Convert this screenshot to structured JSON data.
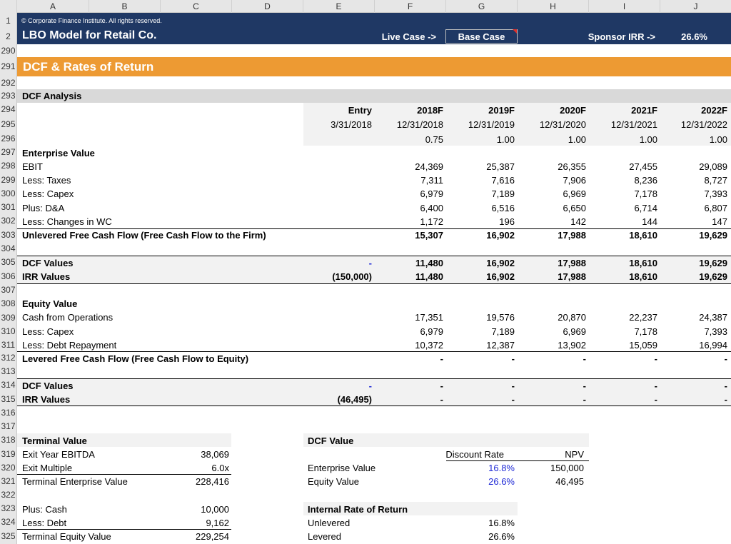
{
  "column_headers": [
    "A",
    "B",
    "C",
    "D",
    "E",
    "F",
    "G",
    "H",
    "I",
    "J"
  ],
  "row_numbers": [
    "1",
    "2",
    "290",
    "291",
    "292",
    "293",
    "294",
    "295",
    "296",
    "297",
    "298",
    "299",
    "300",
    "301",
    "302",
    "303",
    "304",
    "305",
    "306",
    "307",
    "308",
    "309",
    "310",
    "311",
    "312",
    "313",
    "314",
    "315",
    "316",
    "317",
    "318",
    "319",
    "320",
    "321",
    "322",
    "323",
    "324",
    "325"
  ],
  "header": {
    "copyright": "© Corporate Finance Institute. All rights reserved.",
    "title": "LBO Model for Retail Co.",
    "live_case_label": "Live Case ->",
    "live_case_value": "Base Case",
    "sponsor_irr_label": "Sponsor IRR ->",
    "sponsor_irr_value": "26.6%"
  },
  "section_title": "DCF & Rates of Return",
  "dcf_analysis": {
    "title": "DCF Analysis",
    "periods": [
      "Entry",
      "2018F",
      "2019F",
      "2020F",
      "2021F",
      "2022F"
    ],
    "dates": [
      "3/31/2018",
      "12/31/2018",
      "12/31/2019",
      "12/31/2020",
      "12/31/2021",
      "12/31/2022"
    ],
    "fractions": [
      "",
      "0.75",
      "1.00",
      "1.00",
      "1.00",
      "1.00"
    ]
  },
  "enterprise_value": {
    "title": "Enterprise Value",
    "rows": [
      {
        "label": "EBIT",
        "values": [
          "",
          "24,369",
          "25,387",
          "26,355",
          "27,455",
          "29,089"
        ]
      },
      {
        "label": "Less: Taxes",
        "values": [
          "",
          "7,311",
          "7,616",
          "7,906",
          "8,236",
          "8,727"
        ]
      },
      {
        "label": "Less: Capex",
        "values": [
          "",
          "6,979",
          "7,189",
          "6,969",
          "7,178",
          "7,393"
        ]
      },
      {
        "label": "Plus: D&A",
        "values": [
          "",
          "6,400",
          "6,516",
          "6,650",
          "6,714",
          "6,807"
        ]
      },
      {
        "label": "Less: Changes in WC",
        "values": [
          "",
          "1,172",
          "196",
          "142",
          "144",
          "147"
        ]
      }
    ],
    "ufcf": {
      "label": "Unlevered Free Cash Flow (Free Cash Flow to the Firm)",
      "values": [
        "",
        "15,307",
        "16,902",
        "17,988",
        "18,610",
        "19,629"
      ]
    },
    "dcf_values": {
      "label": "DCF Values",
      "values": [
        "-",
        "11,480",
        "16,902",
        "17,988",
        "18,610",
        "19,629"
      ]
    },
    "irr_values": {
      "label": "IRR Values",
      "values": [
        "(150,000)",
        "11,480",
        "16,902",
        "17,988",
        "18,610",
        "19,629"
      ]
    }
  },
  "equity_value": {
    "title": "Equity Value",
    "rows": [
      {
        "label": "Cash from Operations",
        "values": [
          "",
          "17,351",
          "19,576",
          "20,870",
          "22,237",
          "24,387"
        ]
      },
      {
        "label": "Less: Capex",
        "values": [
          "",
          "6,979",
          "7,189",
          "6,969",
          "7,178",
          "7,393"
        ]
      },
      {
        "label": "Less: Debt Repayment",
        "values": [
          "",
          "10,372",
          "12,387",
          "13,902",
          "15,059",
          "16,994"
        ]
      }
    ],
    "lfcf": {
      "label": "Levered Free Cash Flow (Free Cash Flow to Equity)",
      "values": [
        "",
        "-",
        "-",
        "-",
        "-",
        "-"
      ]
    },
    "dcf_values": {
      "label": "DCF Values",
      "values": [
        "-",
        "-",
        "-",
        "-",
        "-",
        "-"
      ]
    },
    "irr_values": {
      "label": "IRR Values",
      "values": [
        "(46,495)",
        "-",
        "-",
        "-",
        "-",
        "-"
      ]
    }
  },
  "terminal_value": {
    "title": "Terminal Value",
    "rows": [
      {
        "label": "Exit Year EBITDA",
        "value": "38,069"
      },
      {
        "label": "Exit Multiple",
        "value": "6.0x"
      },
      {
        "label": "Terminal Enterprise Value",
        "value": "228,416"
      },
      {
        "label": "",
        "value": ""
      },
      {
        "label": "Plus: Cash",
        "value": "10,000"
      },
      {
        "label": "Less: Debt",
        "value": "9,162"
      },
      {
        "label": "Terminal Equity Value",
        "value": "229,254"
      }
    ]
  },
  "dcf_value": {
    "title": "DCF Value",
    "col_discount_rate": "Discount Rate",
    "col_npv": "NPV",
    "rows": [
      {
        "label": "Enterprise Value",
        "rate": "16.8%",
        "npv": "150,000"
      },
      {
        "label": "Equity Value",
        "rate": "26.6%",
        "npv": "46,495"
      }
    ]
  },
  "irr": {
    "title": "Internal Rate of Return",
    "rows": [
      {
        "label": "Unlevered",
        "value": "16.8%"
      },
      {
        "label": "Levered",
        "value": "26.6%"
      }
    ]
  },
  "colors": {
    "navy": "#1f3864",
    "orange": "#ed9a33",
    "grey_band": "#d9d9d9",
    "light_band": "#f2f2f2",
    "input_blue": "#1f2ad6"
  }
}
